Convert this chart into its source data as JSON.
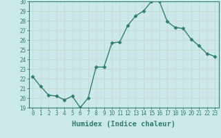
{
  "x": [
    0,
    1,
    2,
    3,
    4,
    5,
    6,
    7,
    8,
    9,
    10,
    11,
    12,
    13,
    14,
    15,
    16,
    17,
    18,
    19,
    20,
    21,
    22,
    23
  ],
  "y": [
    22.2,
    21.2,
    20.3,
    20.2,
    19.8,
    20.2,
    19.0,
    20.0,
    23.2,
    23.2,
    25.7,
    25.8,
    27.5,
    28.5,
    29.0,
    30.0,
    30.0,
    27.9,
    27.3,
    27.2,
    26.1,
    25.4,
    24.6,
    24.3
  ],
  "line_color": "#2e7d6e",
  "bg_color": "#cce9e9",
  "grid_color": "#b8d8d8",
  "xlabel": "Humidex (Indice chaleur)",
  "ylim": [
    19,
    30
  ],
  "yticks": [
    19,
    20,
    21,
    22,
    23,
    24,
    25,
    26,
    27,
    28,
    29,
    30
  ],
  "xticks": [
    0,
    1,
    2,
    3,
    4,
    5,
    6,
    7,
    8,
    9,
    10,
    11,
    12,
    13,
    14,
    15,
    16,
    17,
    18,
    19,
    20,
    21,
    22,
    23
  ],
  "marker": "D",
  "marker_size": 2.5,
  "line_width": 1.0,
  "xlabel_fontsize": 7.5,
  "tick_fontsize": 5.5,
  "tick_color": "#2e7d6e"
}
